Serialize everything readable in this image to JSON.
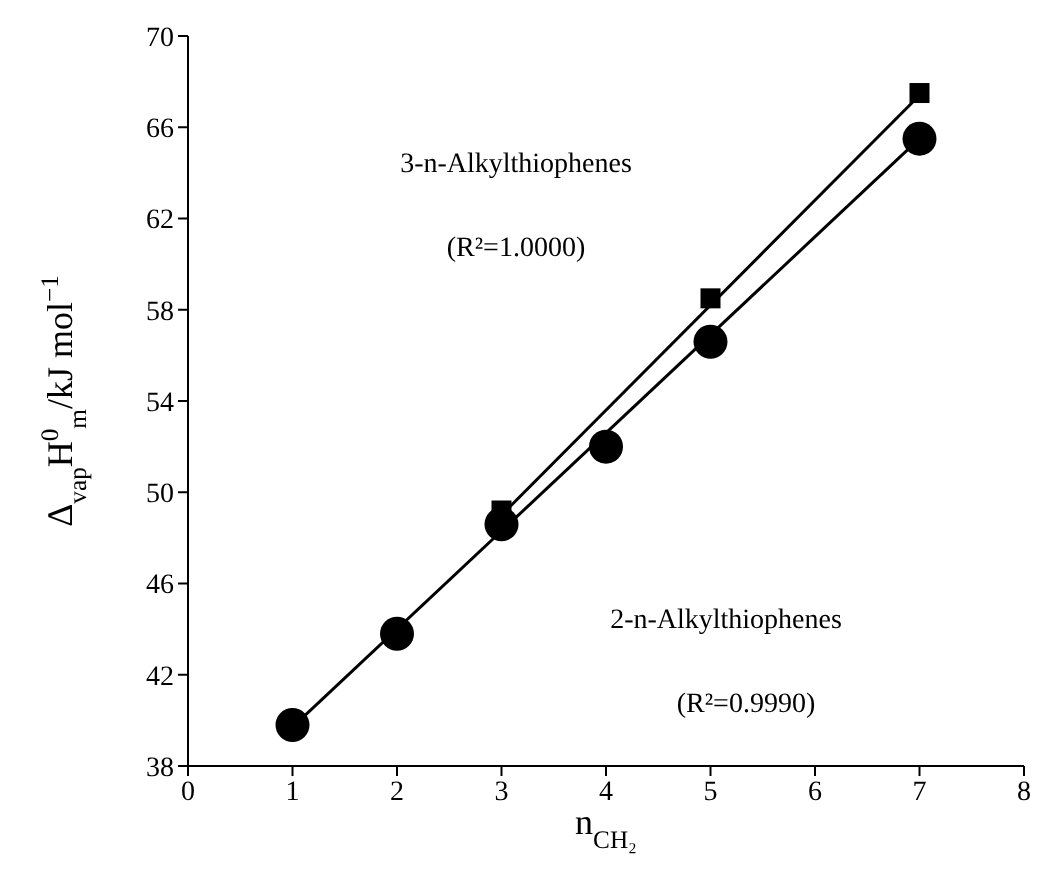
{
  "chart_data": {
    "type": "scatter",
    "xlabel": "n$_{CH₂}$",
    "ylabel": "Δ$_{vap}$H$^{0}$$_{m}$/kJ mol$^{−1}$",
    "xlim": [
      0,
      8
    ],
    "xticks": [
      0,
      1,
      2,
      3,
      4,
      5,
      6,
      7,
      8
    ],
    "ylim": [
      38,
      70
    ],
    "yticks": [
      38,
      42,
      46,
      50,
      54,
      58,
      62,
      66,
      70
    ],
    "annotations": [
      "3-n-Alkylthiophenes",
      "(R²=1.0000)",
      "2-n-Alkylthiophenes",
      "(R²=0.9990)"
    ],
    "series": [
      {
        "type": "line",
        "color": "#000000",
        "marker": "none",
        "x": [
          3,
          7
        ],
        "values": [
          49.0,
          67.4
        ]
      },
      {
        "type": "line",
        "color": "#000000",
        "marker": "none",
        "x": [
          1,
          7
        ],
        "values": [
          39.7,
          65.5
        ]
      },
      {
        "color": "#000000",
        "marker": "square",
        "x": [
          3,
          5,
          7
        ],
        "values": [
          49.2,
          58.5,
          67.5
        ]
      },
      {
        "color": "#000000",
        "marker": "circle",
        "x": [
          1,
          2,
          3,
          4,
          5,
          7
        ],
        "values": [
          39.8,
          43.8,
          48.6,
          52.0,
          56.6,
          65.5
        ]
      }
    ]
  }
}
